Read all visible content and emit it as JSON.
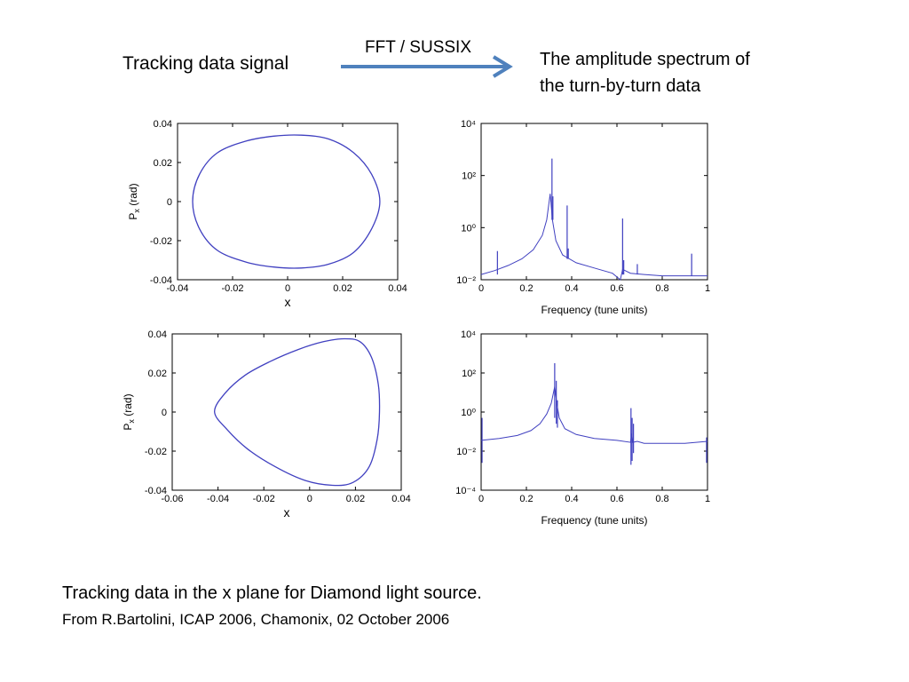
{
  "header": {
    "left_label": "Tracking data signal",
    "arrow_label": "FFT / SUSSIX",
    "right_label_line1": "The amplitude spectrum of",
    "right_label_line2": "the turn-by-turn data"
  },
  "footer": {
    "main": "Tracking data in the x plane for Diamond light source.",
    "source": "From R.Bartolini, ICAP 2006, Chamonix, 02 October 2006"
  },
  "colors": {
    "trace": "#4040c0",
    "arrow": "#4f81bd"
  },
  "chart_data": [
    {
      "id": "phase1",
      "type": "line",
      "xlabel": "x",
      "ylabel": "P",
      "ylabel_sub": "x",
      "ylabel_unit": " (rad)",
      "xlim": [
        -0.04,
        0.04
      ],
      "ylim": [
        -0.04,
        0.04
      ],
      "xticks": [
        "-0.04",
        "-0.02",
        "0",
        "0.02",
        "0.04"
      ],
      "yticks": [
        "0.04",
        "0.02",
        "0",
        "-0.02",
        "-0.04"
      ],
      "xtick_values": [
        -0.04,
        -0.02,
        0,
        0.02,
        0.04
      ],
      "ytick_values": [
        0.04,
        0.02,
        0,
        -0.02,
        -0.04
      ],
      "series": [
        {
          "x": [
            -0.0345,
            -0.032,
            -0.0255,
            -0.015,
            -0.005,
            0.005,
            0.015,
            0.024,
            0.0305,
            0.0335,
            0.0305,
            0.024,
            0.015,
            0.005,
            -0.005,
            -0.015,
            -0.0255,
            -0.032,
            -0.0345
          ],
          "y": [
            0.0,
            0.014,
            0.025,
            0.031,
            0.0335,
            0.034,
            0.032,
            0.025,
            0.014,
            0.0,
            -0.014,
            -0.026,
            -0.032,
            -0.034,
            -0.0335,
            -0.031,
            -0.025,
            -0.014,
            0.0
          ]
        }
      ]
    },
    {
      "id": "spectrum1",
      "type": "line",
      "xlabel": "Frequency (tune units)",
      "ylabel": "",
      "scale": "log",
      "xlim": [
        0,
        1
      ],
      "ylim_exp": [
        -2,
        4
      ],
      "xticks": [
        "0",
        "0.2",
        "0.4",
        "0.6",
        "0.8",
        "1"
      ],
      "yticks": [
        "10⁴",
        "10²",
        "10⁰",
        "10⁻²"
      ],
      "xtick_values": [
        0,
        0.2,
        0.4,
        0.6,
        0.8,
        1
      ],
      "ytick_values": [
        4,
        2,
        0,
        -2
      ],
      "baseline": {
        "x": [
          0.0,
          0.06,
          0.12,
          0.18,
          0.23,
          0.27,
          0.29,
          0.305,
          0.315,
          0.33,
          0.36,
          0.42,
          0.5,
          0.58,
          0.615,
          0.625,
          0.66,
          0.72,
          0.8,
          0.9,
          1.0
        ],
        "y": [
          -1.8,
          -1.65,
          -1.45,
          -1.2,
          -0.85,
          -0.3,
          0.3,
          1.3,
          0.3,
          -0.5,
          -1.05,
          -1.35,
          -1.55,
          -1.75,
          -2.0,
          -1.6,
          -1.75,
          -1.8,
          -1.85,
          -1.85,
          -1.85
        ]
      },
      "peaks": [
        {
          "x": 0.072,
          "top": -0.9,
          "bottom": -1.8
        },
        {
          "x": 0.313,
          "top": 2.65,
          "bottom": 0.3
        },
        {
          "x": 0.317,
          "top": 1.2,
          "bottom": 0.3
        },
        {
          "x": 0.38,
          "top": 0.85,
          "bottom": -1.2
        },
        {
          "x": 0.385,
          "top": -0.8,
          "bottom": -1.2
        },
        {
          "x": 0.625,
          "top": 0.35,
          "bottom": -1.8
        },
        {
          "x": 0.63,
          "top": -1.25,
          "bottom": -1.8
        },
        {
          "x": 0.69,
          "top": -1.4,
          "bottom": -1.8
        },
        {
          "x": 0.93,
          "top": -1.0,
          "bottom": -1.85
        }
      ]
    },
    {
      "id": "phase2",
      "type": "line",
      "xlabel": "x",
      "ylabel": "P",
      "ylabel_sub": "x",
      "ylabel_unit": " (rad)",
      "xlim": [
        -0.06,
        0.04
      ],
      "ylim": [
        -0.04,
        0.04
      ],
      "xticks": [
        "-0.06",
        "-0.04",
        "-0.02",
        "0",
        "0.02",
        "0.04"
      ],
      "yticks": [
        "0.04",
        "0.02",
        "0",
        "-0.02",
        "-0.04"
      ],
      "xtick_values": [
        -0.06,
        -0.04,
        -0.02,
        0,
        0.02,
        0.04
      ],
      "ytick_values": [
        0.04,
        0.02,
        0,
        -0.02,
        -0.04
      ],
      "series": [
        {
          "x": [
            -0.0415,
            -0.037,
            -0.028,
            -0.017,
            -0.005,
            0.006,
            0.015,
            0.022,
            0.027,
            0.03,
            0.0305,
            0.0295,
            0.026,
            0.019,
            0.01,
            -0.002,
            -0.015,
            -0.027,
            -0.036,
            -0.0415
          ],
          "y": [
            0.0,
            0.0095,
            0.019,
            0.026,
            0.032,
            0.036,
            0.0375,
            0.036,
            0.028,
            0.014,
            0.0,
            -0.014,
            -0.028,
            -0.036,
            -0.0375,
            -0.035,
            -0.028,
            -0.019,
            -0.009,
            0.0
          ]
        }
      ]
    },
    {
      "id": "spectrum2",
      "type": "line",
      "xlabel": "Frequency (tune units)",
      "ylabel": "",
      "scale": "log",
      "xlim": [
        0,
        1
      ],
      "ylim_exp": [
        -4,
        4
      ],
      "xticks": [
        "0",
        "0.2",
        "0.4",
        "0.6",
        "0.8",
        "1"
      ],
      "yticks": [
        "10⁴",
        "10²",
        "10⁰",
        "10⁻²",
        "10⁻⁴"
      ],
      "xtick_values": [
        0,
        0.2,
        0.4,
        0.6,
        0.8,
        1
      ],
      "ytick_values": [
        4,
        2,
        0,
        -2,
        -4
      ],
      "baseline": {
        "x": [
          0.0,
          0.08,
          0.16,
          0.22,
          0.26,
          0.29,
          0.31,
          0.325,
          0.335,
          0.345,
          0.37,
          0.42,
          0.5,
          0.6,
          0.66,
          0.665,
          0.67,
          0.69,
          0.72,
          0.8,
          0.9,
          1.0
        ],
        "y": [
          -1.45,
          -1.35,
          -1.2,
          -0.95,
          -0.6,
          -0.1,
          0.45,
          1.3,
          0.4,
          -0.3,
          -0.85,
          -1.15,
          -1.35,
          -1.45,
          -1.55,
          -1.1,
          -1.55,
          -1.5,
          -1.6,
          -1.6,
          -1.6,
          -1.5
        ]
      },
      "peaks": [
        {
          "x": 0.004,
          "top": -0.3,
          "bottom": -2.6
        },
        {
          "x": 0.325,
          "top": 2.5,
          "bottom": -0.3
        },
        {
          "x": 0.332,
          "top": 1.6,
          "bottom": -0.6
        },
        {
          "x": 0.337,
          "top": 0.6,
          "bottom": -0.8
        },
        {
          "x": 0.662,
          "top": 0.2,
          "bottom": -2.7
        },
        {
          "x": 0.667,
          "top": -0.3,
          "bottom": -2.5
        },
        {
          "x": 0.673,
          "top": -0.6,
          "bottom": -2.1
        },
        {
          "x": 0.996,
          "top": -1.3,
          "bottom": -2.6
        }
      ]
    }
  ]
}
